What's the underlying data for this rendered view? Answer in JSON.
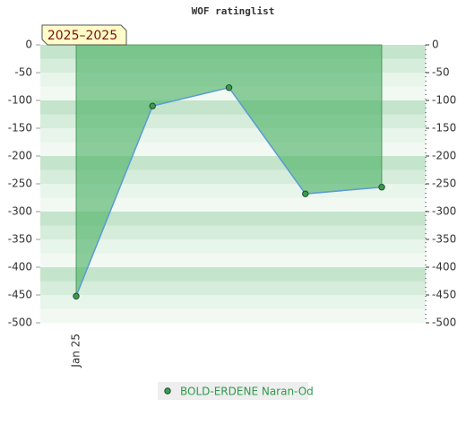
{
  "chart_data": {
    "type": "line",
    "title": "WOF ratinglist",
    "range_label": "2025–2025",
    "categories": [
      "Jan 25",
      null,
      null,
      null,
      null
    ],
    "series": [
      {
        "name": "BOLD-ERDENE Naran-Od",
        "color": "#3c9a50",
        "line_color": "#5b9bd5",
        "values": [
          -452,
          -110,
          -77,
          -268,
          -256
        ]
      }
    ],
    "ylim": [
      -500,
      0
    ],
    "yticks": [
      0,
      -50,
      -100,
      -150,
      -200,
      -250,
      -300,
      -350,
      -400,
      -450,
      -500
    ],
    "fill_to": 0,
    "fill_color": "#52b36a",
    "legend": "bottom"
  }
}
